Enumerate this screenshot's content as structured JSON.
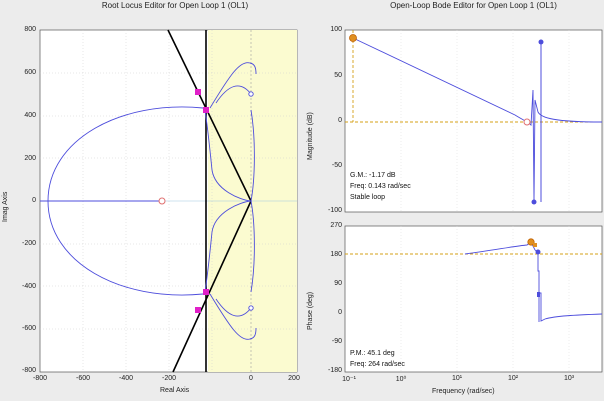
{
  "colors": {
    "locus": "#4d4ddc",
    "gain_marker": "#e020c8",
    "reference_marker": "#e07070",
    "shaded_region": "#fbfbd0",
    "asymptote": "#000000",
    "dashed_reference": "#d4a017",
    "figure_background": "#ececec"
  },
  "root_locus": {
    "title": "Root Locus Editor for Open Loop 1 (OL1)",
    "xlabel": "Real Axis",
    "ylabel": "Imag Axis",
    "x_ticks": [
      "-800",
      "-600",
      "-400",
      "-200",
      "0",
      "200"
    ],
    "y_ticks": [
      "800",
      "600",
      "400",
      "200",
      "0",
      "-200",
      "-400",
      "-600",
      "-800"
    ]
  },
  "magnitude_plot": {
    "title": "Open-Loop Bode Editor for Open Loop 1 (OL1)",
    "ylabel": "Magnitude (dB)",
    "y_ticks": [
      "100",
      "50",
      "0",
      "-50",
      "-100"
    ],
    "notes": [
      "G.M.: -1.17 dB",
      "Freq: 0.143 rad/sec",
      "Stable loop"
    ]
  },
  "phase_plot": {
    "ylabel": "Phase (deg)",
    "y_ticks": [
      "270",
      "180",
      "90",
      "0",
      "-90",
      "-180"
    ],
    "x_ticks": [
      "10⁻¹",
      "10⁰",
      "10¹",
      "10²",
      "10³"
    ],
    "xlabel": "Frequency (rad/sec)",
    "notes": [
      "P.M.: 45.1 deg",
      "Freq: 264 rad/sec"
    ]
  }
}
